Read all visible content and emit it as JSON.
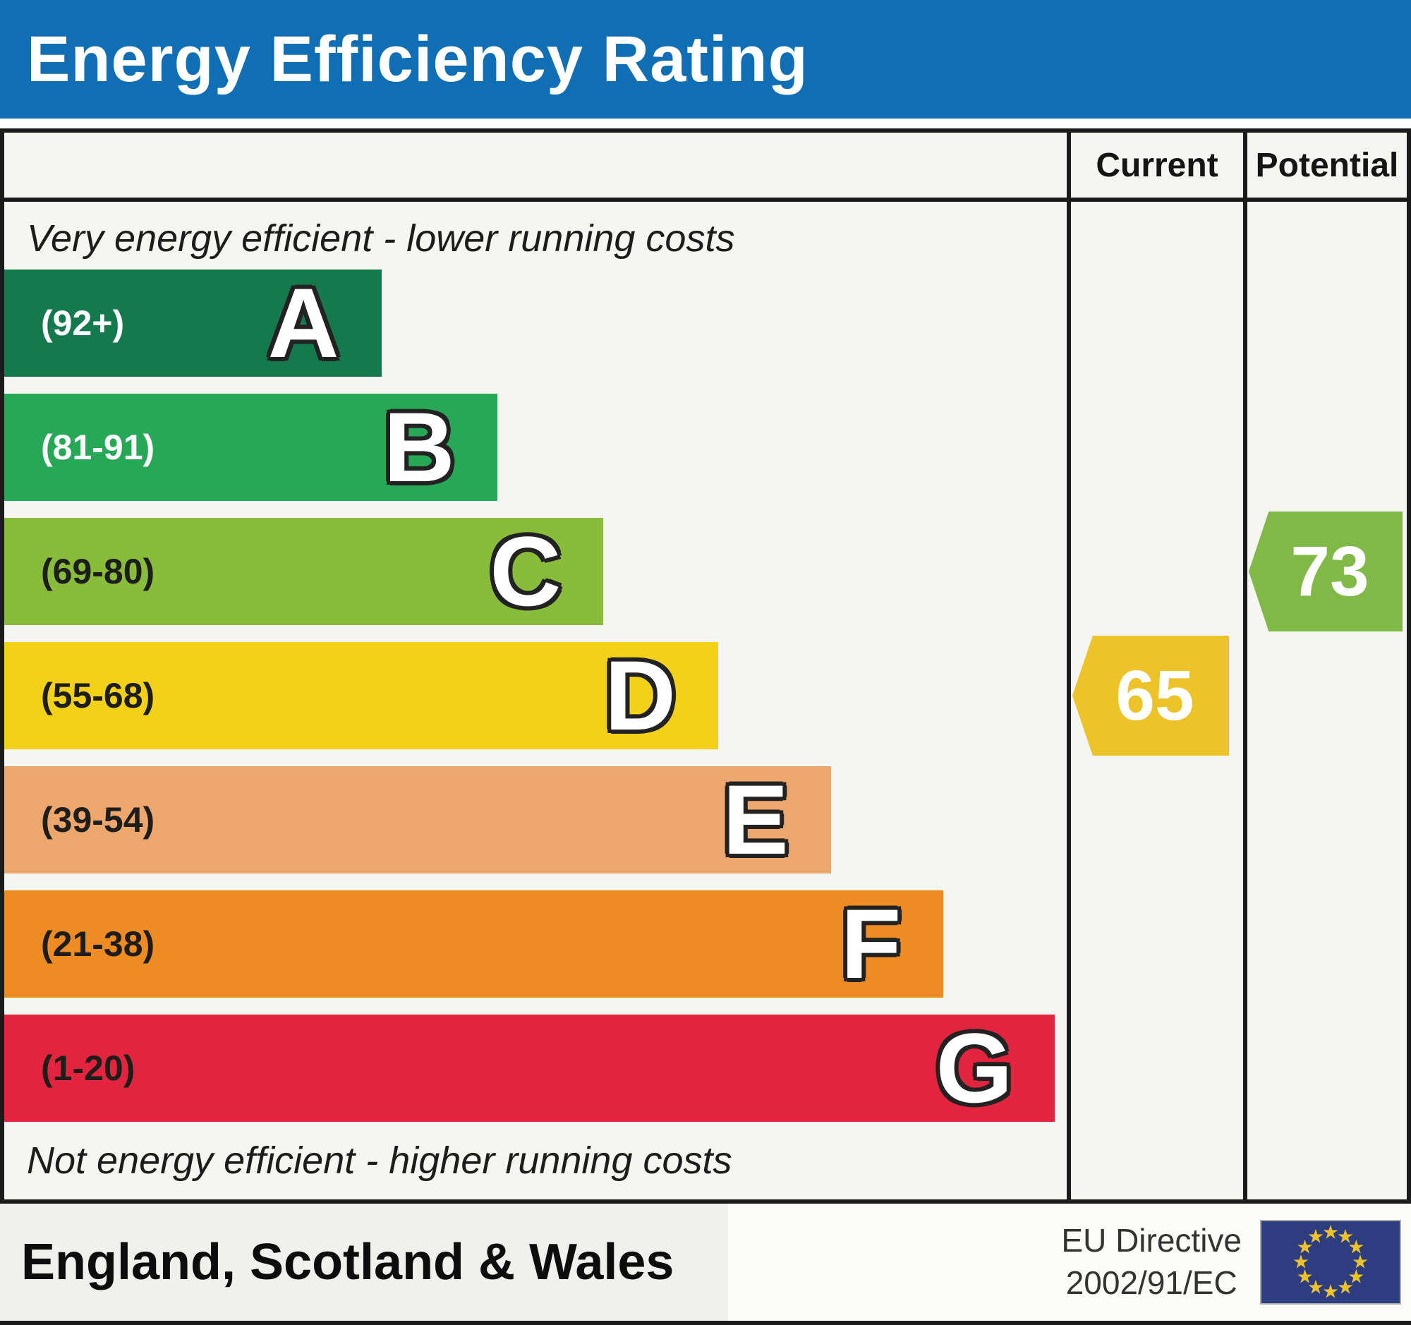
{
  "title": "Energy Efficiency Rating",
  "columns": {
    "current": "Current",
    "potential": "Potential"
  },
  "notes": {
    "top": "Very energy efficient - lower running costs",
    "bottom": "Not energy efficient - higher running costs"
  },
  "bands": [
    {
      "letter": "A",
      "range": "(92+)",
      "color": "#15794e",
      "range_color": "#ffffff",
      "width_pct": 35.5
    },
    {
      "letter": "B",
      "range": "(81-91)",
      "color": "#27a857",
      "range_color": "#ffffff",
      "width_pct": 46.4
    },
    {
      "letter": "C",
      "range": "(69-80)",
      "color": "#8abc3c",
      "range_color": "#1d1d1b",
      "width_pct": 56.4
    },
    {
      "letter": "D",
      "range": "(55-68)",
      "color": "#f2d118",
      "range_color": "#1d1d1b",
      "width_pct": 67.2
    },
    {
      "letter": "E",
      "range": "(39-54)",
      "color": "#eda76c",
      "range_color": "#1d1d1b",
      "width_pct": 77.8
    },
    {
      "letter": "F",
      "range": "(21-38)",
      "color": "#ee8b23",
      "range_color": "#1d1d1b",
      "width_pct": 88.4
    },
    {
      "letter": "G",
      "range": "(1-20)",
      "color": "#e3243f",
      "range_color": "#1d1d1b",
      "width_pct": 98.9
    }
  ],
  "ratings": {
    "current": {
      "value": "65",
      "band": "D",
      "color": "#eec32a"
    },
    "potential": {
      "value": "73",
      "band": "C",
      "color": "#81b946"
    }
  },
  "footer": {
    "region": "England, Scotland & Wales",
    "directive_line1": "EU Directive",
    "directive_line2": "2002/91/EC"
  },
  "colors": {
    "header_blue": "#106fb4",
    "table_bg": "#f5f5f1",
    "border": "#1b1b1b",
    "flag_bg": "#2d3d80",
    "flag_star": "#edc32c"
  },
  "chart_data": {
    "type": "bar",
    "title": "Energy Efficiency Rating",
    "orientation": "horizontal",
    "categories": [
      "A",
      "B",
      "C",
      "D",
      "E",
      "F",
      "G"
    ],
    "band_score_ranges": [
      "92+",
      "81-91",
      "69-80",
      "55-68",
      "39-54",
      "21-38",
      "1-20"
    ],
    "bar_relative_lengths_pct": [
      35.5,
      46.4,
      56.4,
      67.2,
      77.8,
      88.4,
      98.9
    ],
    "band_colors": [
      "#15794e",
      "#27a857",
      "#8abc3c",
      "#f2d118",
      "#eda76c",
      "#ee8b23",
      "#e3243f"
    ],
    "series": [
      {
        "name": "Current",
        "value": 65,
        "band": "D"
      },
      {
        "name": "Potential",
        "value": 73,
        "band": "C"
      }
    ],
    "top_annotation": "Very energy efficient - lower running costs",
    "bottom_annotation": "Not energy efficient - higher running costs",
    "footnote": "England, Scotland & Wales — EU Directive 2002/91/EC"
  }
}
